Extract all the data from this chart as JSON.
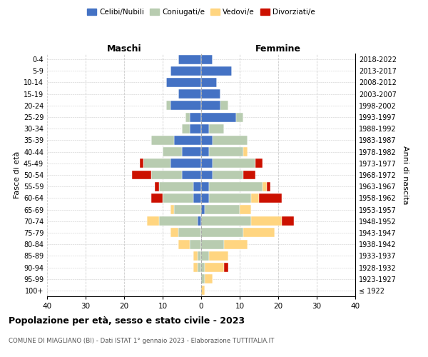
{
  "age_groups": [
    "100+",
    "95-99",
    "90-94",
    "85-89",
    "80-84",
    "75-79",
    "70-74",
    "65-69",
    "60-64",
    "55-59",
    "50-54",
    "45-49",
    "40-44",
    "35-39",
    "30-34",
    "25-29",
    "20-24",
    "15-19",
    "10-14",
    "5-9",
    "0-4"
  ],
  "birth_years": [
    "≤ 1922",
    "1923-1927",
    "1928-1932",
    "1933-1937",
    "1938-1942",
    "1943-1947",
    "1948-1952",
    "1953-1957",
    "1958-1962",
    "1963-1967",
    "1968-1972",
    "1973-1977",
    "1978-1982",
    "1983-1987",
    "1988-1992",
    "1993-1997",
    "1998-2002",
    "2003-2007",
    "2008-2012",
    "2013-2017",
    "2018-2022"
  ],
  "maschi": {
    "celibi": [
      0,
      0,
      0,
      0,
      0,
      0,
      1,
      0,
      2,
      2,
      5,
      8,
      5,
      7,
      3,
      3,
      8,
      6,
      9,
      8,
      6
    ],
    "coniugati": [
      0,
      0,
      1,
      1,
      3,
      6,
      10,
      7,
      8,
      9,
      8,
      7,
      5,
      6,
      2,
      1,
      1,
      0,
      0,
      0,
      0
    ],
    "vedovi": [
      0,
      0,
      1,
      1,
      3,
      2,
      3,
      1,
      0,
      0,
      0,
      0,
      0,
      0,
      0,
      0,
      0,
      0,
      0,
      0,
      0
    ],
    "divorziati": [
      0,
      0,
      0,
      0,
      0,
      0,
      0,
      0,
      3,
      1,
      5,
      1,
      0,
      0,
      0,
      0,
      0,
      0,
      0,
      0,
      0
    ]
  },
  "femmine": {
    "nubili": [
      0,
      0,
      0,
      0,
      0,
      0,
      0,
      1,
      2,
      2,
      3,
      3,
      2,
      3,
      2,
      9,
      5,
      5,
      4,
      8,
      3
    ],
    "coniugate": [
      0,
      1,
      1,
      2,
      6,
      11,
      13,
      9,
      11,
      14,
      8,
      11,
      9,
      9,
      4,
      2,
      2,
      0,
      0,
      0,
      0
    ],
    "vedove": [
      1,
      2,
      5,
      5,
      6,
      8,
      8,
      3,
      2,
      1,
      0,
      0,
      1,
      0,
      0,
      0,
      0,
      0,
      0,
      0,
      0
    ],
    "divorziate": [
      0,
      0,
      1,
      0,
      0,
      0,
      3,
      0,
      6,
      1,
      3,
      2,
      0,
      0,
      0,
      0,
      0,
      0,
      0,
      0,
      0
    ]
  },
  "colors": {
    "celibi_nubili": "#4472C4",
    "coniugati": "#B8CCB0",
    "vedovi": "#FFD580",
    "divorziati": "#CC1100"
  },
  "xlim": 40,
  "title": "Popolazione per età, sesso e stato civile - 2023",
  "subtitle": "COMUNE DI MIAGLIANO (BI) - Dati ISTAT 1° gennaio 2023 - Elaborazione TUTTITALIA.IT",
  "ylabel_left": "Fasce di età",
  "ylabel_right": "Anni di nascita",
  "xlabel_maschi": "Maschi",
  "xlabel_femmine": "Femmine"
}
